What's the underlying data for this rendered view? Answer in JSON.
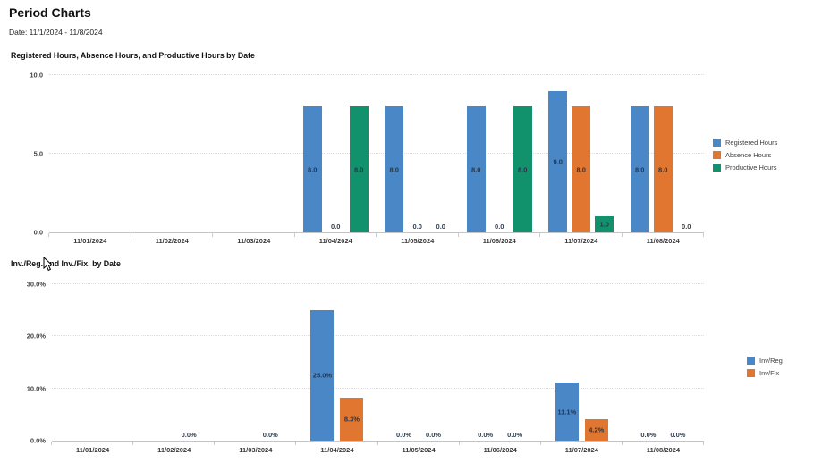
{
  "page": {
    "title": "Period Charts",
    "date_range": "Date: 11/1/2024 - 11/8/2024"
  },
  "colors": {
    "registered_blue": "#4a87c6",
    "absence_orange": "#e0762f",
    "productive_green": "#12916d",
    "inv_reg_blue": "#4a87c6",
    "inv_fix_orange": "#e0762f",
    "gridline": "#dcdcdc",
    "axis_line": "#c4c4c4",
    "data_label": "#26374c"
  },
  "chart_data": [
    {
      "type": "bar",
      "title": "Registered Hours, Absence Hours, and Productive Hours by Date",
      "categories": [
        "11/01/2024",
        "11/02/2024",
        "11/03/2024",
        "11/04/2024",
        "11/05/2024",
        "11/06/2024",
        "11/07/2024",
        "11/08/2024"
      ],
      "series": [
        {
          "name": "Registered Hours",
          "color": "#4a87c6",
          "values": [
            null,
            null,
            null,
            8.0,
            8.0,
            8.0,
            9.0,
            8.0
          ],
          "labels": [
            "",
            "",
            "",
            "8.0",
            "8.0",
            "8.0",
            "9.0",
            "8.0"
          ]
        },
        {
          "name": "Absence Hours",
          "color": "#e0762f",
          "values": [
            null,
            null,
            null,
            0.0,
            0.0,
            0.0,
            8.0,
            8.0
          ],
          "labels": [
            "",
            "",
            "",
            "0.0",
            "0.0",
            "0.0",
            "8.0",
            "8.0"
          ]
        },
        {
          "name": "Productive Hours",
          "color": "#12916d",
          "values": [
            null,
            null,
            null,
            8.0,
            0.0,
            8.0,
            1.0,
            0.0
          ],
          "labels": [
            "",
            "",
            "",
            "8.0",
            "0.0",
            "8.0",
            "1.0",
            "0.0"
          ]
        }
      ],
      "ylim": [
        0,
        10
      ],
      "yticks": [
        {
          "label": "0.0",
          "value": 0
        },
        {
          "label": "5.0",
          "value": 5
        },
        {
          "label": "10.0",
          "value": 10
        }
      ],
      "grid": "horizontal-dotted",
      "legend_position": "right"
    },
    {
      "type": "bar",
      "title": "Inv./Reg. and Inv./Fix. by Date",
      "categories": [
        "11/01/2024",
        "11/02/2024",
        "11/03/2024",
        "11/04/2024",
        "11/05/2024",
        "11/06/2024",
        "11/07/2024",
        "11/08/2024"
      ],
      "series": [
        {
          "name": "Inv/Reg",
          "color": "#4a87c6",
          "values": [
            null,
            null,
            null,
            25.0,
            0.0,
            0.0,
            11.1,
            0.0
          ],
          "labels": [
            "",
            "",
            "",
            "25.0%",
            "0.0%",
            "0.0%",
            "11.1%",
            "0.0%"
          ]
        },
        {
          "name": "Inv/Fix",
          "color": "#e0762f",
          "values": [
            null,
            0.0,
            0.0,
            8.3,
            0.0,
            0.0,
            4.2,
            0.0
          ],
          "labels": [
            "",
            "0.0%",
            "0.0%",
            "8.3%",
            "0.0%",
            "0.0%",
            "4.2%",
            "0.0%"
          ]
        }
      ],
      "ylim": [
        0,
        30
      ],
      "yticks": [
        {
          "label": "0.0%",
          "value": 0
        },
        {
          "label": "10.0%",
          "value": 10
        },
        {
          "label": "20.0%",
          "value": 20
        },
        {
          "label": "30.0%",
          "value": 30
        }
      ],
      "grid": "horizontal-dotted",
      "legend_position": "right"
    }
  ]
}
